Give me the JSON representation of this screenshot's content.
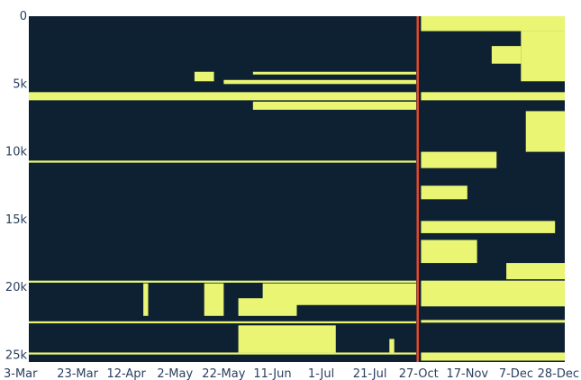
{
  "colors": {
    "background": "#0d2133",
    "fill": "#e9f573",
    "divider": "#e2492a",
    "tick_text": "#2a3f5f"
  },
  "chart_data": {
    "type": "heatmap",
    "title": "",
    "xlabel": "",
    "ylabel": "",
    "ylim": [
      0,
      25500
    ],
    "x_ticks": [
      "3-Mar",
      "23-Mar",
      "12-Apr",
      "2-May",
      "22-May",
      "11-Jun",
      "1-Jul",
      "21-Jul",
      "27-Oct",
      "17-Nov",
      "7-Dec",
      "28-Dec"
    ],
    "y_ticks": [
      {
        "value": 0,
        "label": "0"
      },
      {
        "value": 5000,
        "label": "5k"
      },
      {
        "value": 10000,
        "label": "10k"
      },
      {
        "value": 15000,
        "label": "15k"
      },
      {
        "value": 20000,
        "label": "20k"
      },
      {
        "value": 25000,
        "label": "25k"
      }
    ],
    "divider_at_x_tick": 8,
    "cell_values": "1 = present (yellow), 0 = absent (dark)",
    "present_blocks_left": [
      {
        "x_start": 0,
        "x_end": 7.95,
        "y_start": 5600,
        "y_end": 6200
      },
      {
        "x_start": 0,
        "x_end": 7.95,
        "y_start": 10650,
        "y_end": 10800
      },
      {
        "x_start": 0,
        "x_end": 7.95,
        "y_start": 19500,
        "y_end": 19650
      },
      {
        "x_start": 0,
        "x_end": 7.95,
        "y_start": 22500,
        "y_end": 22650
      },
      {
        "x_start": 0,
        "x_end": 7.95,
        "y_start": 24800,
        "y_end": 24950
      },
      {
        "x_start": 3.4,
        "x_end": 3.8,
        "y_start": 4100,
        "y_end": 4800
      },
      {
        "x_start": 4.6,
        "x_end": 7.95,
        "y_start": 4100,
        "y_end": 4300
      },
      {
        "x_start": 4.0,
        "x_end": 7.95,
        "y_start": 4700,
        "y_end": 5000
      },
      {
        "x_start": 4.6,
        "x_end": 7.95,
        "y_start": 6300,
        "y_end": 6900
      },
      {
        "x_start": 2.35,
        "x_end": 2.45,
        "y_start": 19700,
        "y_end": 22100
      },
      {
        "x_start": 3.6,
        "x_end": 4.0,
        "y_start": 19700,
        "y_end": 22100
      },
      {
        "x_start": 4.8,
        "x_end": 7.95,
        "y_start": 19700,
        "y_end": 21300
      },
      {
        "x_start": 4.3,
        "x_end": 5.5,
        "y_start": 20800,
        "y_end": 22100
      },
      {
        "x_start": 4.3,
        "x_end": 6.3,
        "y_start": 22800,
        "y_end": 24800
      },
      {
        "x_start": 7.4,
        "x_end": 7.5,
        "y_start": 23800,
        "y_end": 24800
      }
    ],
    "present_blocks_right": [
      {
        "x_start": 8.05,
        "x_end": 11,
        "y_start": 0,
        "y_end": 1100
      },
      {
        "x_start": 10.1,
        "x_end": 11,
        "y_start": 1100,
        "y_end": 4800
      },
      {
        "x_start": 9.5,
        "x_end": 10.1,
        "y_start": 2200,
        "y_end": 3500
      },
      {
        "x_start": 8.05,
        "x_end": 11,
        "y_start": 5600,
        "y_end": 6200
      },
      {
        "x_start": 10.2,
        "x_end": 11,
        "y_start": 7000,
        "y_end": 10000
      },
      {
        "x_start": 8.05,
        "x_end": 9.6,
        "y_start": 10000,
        "y_end": 11200
      },
      {
        "x_start": 8.05,
        "x_end": 9.0,
        "y_start": 12500,
        "y_end": 13500
      },
      {
        "x_start": 8.05,
        "x_end": 10.8,
        "y_start": 15100,
        "y_end": 16000
      },
      {
        "x_start": 8.05,
        "x_end": 9.2,
        "y_start": 16500,
        "y_end": 18200
      },
      {
        "x_start": 9.8,
        "x_end": 11,
        "y_start": 18200,
        "y_end": 19400
      },
      {
        "x_start": 8.05,
        "x_end": 11,
        "y_start": 19500,
        "y_end": 21400
      },
      {
        "x_start": 8.05,
        "x_end": 11,
        "y_start": 22400,
        "y_end": 22600
      },
      {
        "x_start": 8.05,
        "x_end": 11,
        "y_start": 24800,
        "y_end": 25400
      }
    ]
  }
}
